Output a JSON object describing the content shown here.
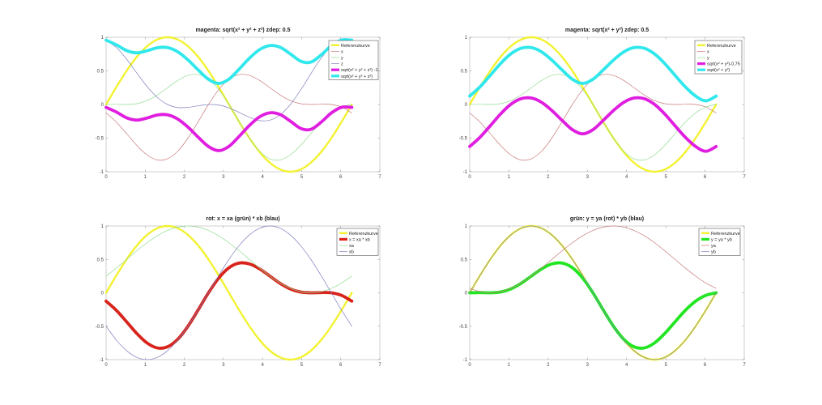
{
  "colors": {
    "reference": "#f2f230",
    "magenta": "#e01ee0",
    "cyan": "#30e8ec",
    "thin_red": "#c87a7a",
    "thin_green": "#92dc92",
    "thin_blue": "#8080c0",
    "thick_red": "#d8241c",
    "thick_green": "#22e622"
  },
  "chart_data": [
    {
      "type": "line",
      "title": "magenta: sqrt(x² + y² + z²) zdep: 0.5",
      "xlim": [
        0,
        7
      ],
      "ylim": [
        -1,
        1
      ],
      "xticks": [
        "0",
        "1",
        "2",
        "3",
        "4",
        "5",
        "6",
        "7"
      ],
      "yticks": [
        "-1",
        "-0.5",
        "0",
        "0.5",
        "1"
      ],
      "grid": false,
      "legend": "top-right",
      "x": [
        0,
        0.262,
        0.524,
        0.785,
        1.047,
        1.309,
        1.571,
        1.833,
        2.094,
        2.356,
        2.618,
        2.88,
        3.142,
        3.403,
        3.665,
        3.927,
        4.189,
        4.451,
        4.712,
        4.974,
        5.236,
        5.498,
        5.76,
        6.021,
        6.283
      ],
      "series": [
        {
          "name": "Referenzkurve",
          "color": "reference",
          "weight": "medium",
          "values": [
            0,
            0.259,
            0.5,
            0.707,
            0.866,
            0.966,
            1,
            0.966,
            0.866,
            0.707,
            0.5,
            0.259,
            0,
            -0.259,
            -0.5,
            -0.707,
            -0.866,
            -0.966,
            -1,
            -0.966,
            -0.866,
            -0.707,
            -0.5,
            -0.259,
            0
          ]
        },
        {
          "name": "x",
          "color": "thin_red",
          "weight": "thin",
          "values": [
            -0.125,
            -0.262,
            -0.433,
            -0.608,
            -0.75,
            -0.825,
            -0.808,
            -0.695,
            -0.5,
            -0.255,
            0,
            0.221,
            0.375,
            0.445,
            0.433,
            0.358,
            0.25,
            0.141,
            0.058,
            0.012,
            0,
            0.004,
            0,
            -0.038,
            -0.125
          ]
        },
        {
          "name": "y",
          "color": "thin_green",
          "weight": "thin",
          "values": [
            0,
            0.004,
            0,
            0.012,
            0.058,
            0.141,
            0.25,
            0.358,
            0.433,
            0.445,
            0.375,
            0.221,
            0,
            -0.255,
            -0.5,
            -0.695,
            -0.808,
            -0.825,
            -0.75,
            -0.608,
            -0.433,
            -0.262,
            -0.125,
            -0.038,
            0
          ]
        },
        {
          "name": "z",
          "color": "thin_blue",
          "weight": "thin",
          "values": [
            0.949,
            0.848,
            0.675,
            0.469,
            0.268,
            0.105,
            0,
            -0.045,
            -0.043,
            -0.019,
            -0.001,
            -0.009,
            -0.05,
            -0.118,
            -0.191,
            -0.238,
            -0.233,
            -0.154,
            0,
            0.214,
            0.457,
            0.688,
            0.865,
            0.957,
            0.949
          ]
        },
        {
          "name": "sqrt(x² + y² + z²) -1",
          "color": "magenta",
          "weight": "thick",
          "values": [
            -0.043,
            -0.112,
            -0.198,
            -0.232,
            -0.201,
            -0.156,
            -0.154,
            -0.217,
            -0.337,
            -0.487,
            -0.625,
            -0.687,
            -0.622,
            -0.474,
            -0.312,
            -0.183,
            -0.123,
            -0.149,
            -0.248,
            -0.355,
            -0.37,
            -0.264,
            -0.126,
            -0.042,
            -0.043
          ]
        },
        {
          "name": "sqrt(x² + y² + z²)",
          "color": "cyan",
          "weight": "thick",
          "values": [
            0.957,
            0.888,
            0.802,
            0.768,
            0.799,
            0.844,
            0.846,
            0.783,
            0.663,
            0.513,
            0.375,
            0.313,
            0.378,
            0.526,
            0.688,
            0.817,
            0.877,
            0.851,
            0.752,
            0.645,
            0.63,
            0.736,
            0.874,
            0.958,
            0.957
          ]
        }
      ]
    },
    {
      "type": "line",
      "title": "magenta: sqrt(x² + y²) zdep: 0.5",
      "xlim": [
        0,
        7
      ],
      "ylim": [
        -1,
        1
      ],
      "xticks": [
        "0",
        "1",
        "2",
        "3",
        "4",
        "5",
        "6",
        "7"
      ],
      "yticks": [
        "-1",
        "-0.5",
        "0",
        "0.5",
        "1"
      ],
      "grid": false,
      "legend": "top-right",
      "x": [
        0,
        0.262,
        0.524,
        0.785,
        1.047,
        1.309,
        1.571,
        1.833,
        2.094,
        2.356,
        2.618,
        2.88,
        3.142,
        3.403,
        3.665,
        3.927,
        4.189,
        4.451,
        4.712,
        4.974,
        5.236,
        5.498,
        5.76,
        6.021,
        6.283
      ],
      "series": [
        {
          "name": "Referenzkurve",
          "color": "reference",
          "weight": "medium",
          "values": [
            0,
            0.259,
            0.5,
            0.707,
            0.866,
            0.966,
            1,
            0.966,
            0.866,
            0.707,
            0.5,
            0.259,
            0,
            -0.259,
            -0.5,
            -0.707,
            -0.866,
            -0.966,
            -1,
            -0.966,
            -0.866,
            -0.707,
            -0.5,
            -0.259,
            0
          ]
        },
        {
          "name": "x",
          "color": "thin_red",
          "weight": "thin",
          "values": [
            -0.125,
            -0.262,
            -0.433,
            -0.608,
            -0.75,
            -0.825,
            -0.808,
            -0.695,
            -0.5,
            -0.255,
            0,
            0.221,
            0.375,
            0.445,
            0.433,
            0.358,
            0.25,
            0.141,
            0.058,
            0.012,
            0,
            0.004,
            0,
            -0.038,
            -0.125
          ]
        },
        {
          "name": "y",
          "color": "thin_green",
          "weight": "thin",
          "values": [
            0,
            0.004,
            0,
            0.012,
            0.058,
            0.141,
            0.25,
            0.358,
            0.433,
            0.445,
            0.375,
            0.221,
            0,
            -0.255,
            -0.5,
            -0.695,
            -0.808,
            -0.825,
            -0.75,
            -0.608,
            -0.433,
            -0.262,
            -0.125,
            -0.038,
            0
          ]
        },
        {
          "name": "sqrt(x² + y²)-0,75",
          "color": "magenta",
          "weight": "thick",
          "values": [
            -0.625,
            -0.488,
            -0.317,
            -0.142,
            0.002,
            0.087,
            0.096,
            0.032,
            -0.089,
            -0.237,
            -0.375,
            -0.437,
            -0.375,
            -0.237,
            -0.089,
            0.032,
            0.096,
            0.087,
            0.002,
            -0.142,
            -0.317,
            -0.488,
            -0.625,
            -0.696,
            -0.625
          ]
        },
        {
          "name": "sqrt(x² + y²)",
          "color": "cyan",
          "weight": "thick",
          "values": [
            0.125,
            0.262,
            0.433,
            0.608,
            0.752,
            0.837,
            0.846,
            0.782,
            0.661,
            0.513,
            0.375,
            0.313,
            0.375,
            0.513,
            0.661,
            0.782,
            0.846,
            0.837,
            0.752,
            0.608,
            0.433,
            0.262,
            0.125,
            0.054,
            0.125
          ]
        }
      ]
    },
    {
      "type": "line",
      "title": "rot: x = xa (grün) * xb (blau)",
      "xlim": [
        0,
        7
      ],
      "ylim": [
        -1,
        1
      ],
      "xticks": [
        "0",
        "1",
        "2",
        "3",
        "4",
        "5",
        "6",
        "7"
      ],
      "yticks": [
        "-1",
        "-0.5",
        "0",
        "0.5",
        "1"
      ],
      "grid": false,
      "legend": "top-right",
      "x": [
        0,
        0.262,
        0.524,
        0.785,
        1.047,
        1.309,
        1.571,
        1.833,
        2.094,
        2.356,
        2.618,
        2.88,
        3.142,
        3.403,
        3.665,
        3.927,
        4.189,
        4.451,
        4.712,
        4.974,
        5.236,
        5.498,
        5.76,
        6.021,
        6.283
      ],
      "series": [
        {
          "name": "Referenzkurve",
          "color": "reference",
          "weight": "medium",
          "values": [
            0,
            0.259,
            0.5,
            0.707,
            0.866,
            0.966,
            1,
            0.966,
            0.866,
            0.707,
            0.5,
            0.259,
            0,
            -0.259,
            -0.5,
            -0.707,
            -0.866,
            -0.966,
            -1,
            -0.966,
            -0.866,
            -0.707,
            -0.5,
            -0.259,
            0
          ]
        },
        {
          "name": "x = xa * xb",
          "color": "thick_red",
          "weight": "thick",
          "values": [
            -0.125,
            -0.262,
            -0.433,
            -0.608,
            -0.75,
            -0.825,
            -0.808,
            -0.695,
            -0.5,
            -0.255,
            0,
            0.221,
            0.375,
            0.445,
            0.433,
            0.358,
            0.25,
            0.141,
            0.058,
            0.012,
            0,
            0.004,
            0,
            -0.038,
            -0.125
          ]
        },
        {
          "name": "xa",
          "color": "thin_green",
          "weight": "thin",
          "values": [
            0.25,
            0.371,
            0.5,
            0.629,
            0.75,
            0.854,
            0.933,
            0.983,
            1,
            0.983,
            0.933,
            0.854,
            0.75,
            0.629,
            0.5,
            0.371,
            0.25,
            0.146,
            0.067,
            0.017,
            0,
            0.017,
            0.067,
            0.146,
            0.25
          ]
        },
        {
          "name": "xb",
          "color": "thin_blue",
          "weight": "thin",
          "values": [
            -0.5,
            -0.707,
            -0.866,
            -0.966,
            -1,
            -0.966,
            -0.866,
            -0.707,
            -0.5,
            -0.259,
            0,
            0.259,
            0.5,
            0.707,
            0.866,
            0.966,
            1,
            0.966,
            0.866,
            0.707,
            0.5,
            0.259,
            0,
            -0.259,
            -0.5
          ]
        }
      ]
    },
    {
      "type": "line",
      "title": "grün: y = ya (rot) * yb (blau)",
      "xlim": [
        0,
        7
      ],
      "ylim": [
        -1,
        1
      ],
      "xticks": [
        "0",
        "1",
        "2",
        "3",
        "4",
        "5",
        "6",
        "7"
      ],
      "yticks": [
        "-1",
        "-0.5",
        "0",
        "0.5",
        "1"
      ],
      "grid": false,
      "legend": "top-right",
      "x": [
        0,
        0.262,
        0.524,
        0.785,
        1.047,
        1.309,
        1.571,
        1.833,
        2.094,
        2.356,
        2.618,
        2.88,
        3.142,
        3.403,
        3.665,
        3.927,
        4.189,
        4.451,
        4.712,
        4.974,
        5.236,
        5.498,
        5.76,
        6.021,
        6.283
      ],
      "series": [
        {
          "name": "Referenzkurve",
          "color": "reference",
          "weight": "medium",
          "values": [
            0,
            0.259,
            0.5,
            0.707,
            0.866,
            0.966,
            1,
            0.966,
            0.866,
            0.707,
            0.5,
            0.259,
            0,
            -0.259,
            -0.5,
            -0.707,
            -0.866,
            -0.966,
            -1,
            -0.966,
            -0.866,
            -0.707,
            -0.5,
            -0.259,
            0
          ]
        },
        {
          "name": "y = ya * yb",
          "color": "thick_green",
          "weight": "thick",
          "values": [
            0,
            0.004,
            0,
            0.012,
            0.058,
            0.141,
            0.25,
            0.358,
            0.433,
            0.445,
            0.375,
            0.221,
            0,
            -0.255,
            -0.5,
            -0.695,
            -0.808,
            -0.825,
            -0.75,
            -0.608,
            -0.433,
            -0.262,
            -0.125,
            -0.038,
            0
          ]
        },
        {
          "name": "ya",
          "color": "thin_red",
          "weight": "thin",
          "values": [
            0.067,
            0.017,
            0,
            0.017,
            0.067,
            0.146,
            0.25,
            0.371,
            0.5,
            0.629,
            0.75,
            0.854,
            0.933,
            0.983,
            1,
            0.983,
            0.933,
            0.854,
            0.75,
            0.629,
            0.5,
            0.371,
            0.25,
            0.146,
            0.067
          ]
        },
        {
          "name": "yb",
          "color": "thin_blue",
          "weight": "thin",
          "values": [
            0,
            0.259,
            0.5,
            0.707,
            0.866,
            0.966,
            1,
            0.966,
            0.866,
            0.707,
            0.5,
            0.259,
            0,
            -0.259,
            -0.5,
            -0.707,
            -0.866,
            -0.966,
            -1,
            -0.966,
            -0.866,
            -0.707,
            -0.5,
            -0.259,
            0
          ]
        }
      ]
    }
  ]
}
